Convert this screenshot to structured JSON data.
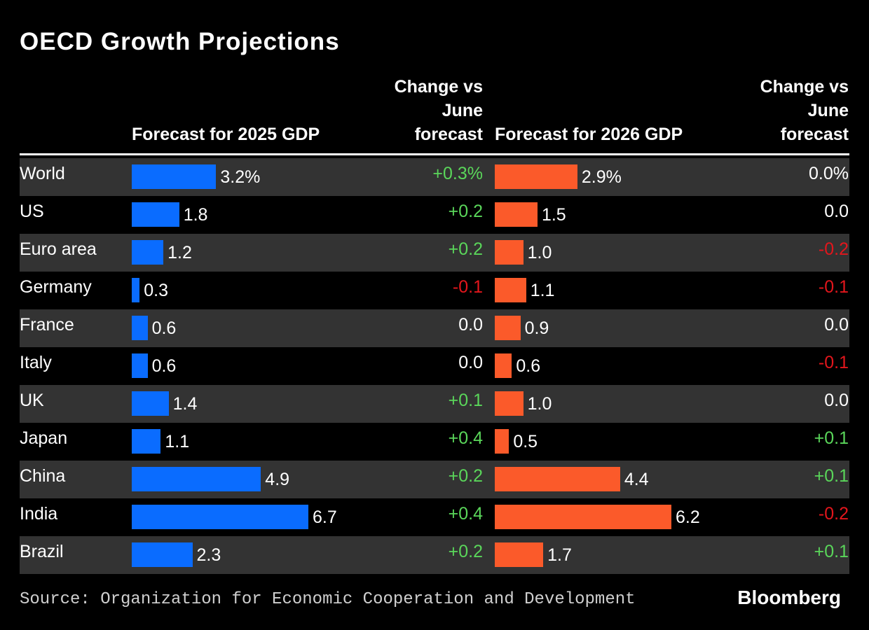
{
  "chart_data": {
    "type": "table-bar",
    "title": "OECD Growth Projections",
    "categories": [
      "World",
      "US",
      "Euro area",
      "Germany",
      "France",
      "Italy",
      "UK",
      "Japan",
      "China",
      "India",
      "Brazil"
    ],
    "series": [
      {
        "name": "Forecast for 2025 GDP",
        "color": "#0a6cff",
        "values": [
          3.2,
          1.8,
          1.2,
          0.3,
          0.6,
          0.6,
          1.4,
          1.1,
          4.9,
          6.7,
          2.3
        ],
        "value_labels": [
          "3.2%",
          "1.8",
          "1.2",
          "0.3",
          "0.6",
          "0.6",
          "1.4",
          "1.1",
          "4.9",
          "6.7",
          "2.3"
        ]
      },
      {
        "name": "Change vs June forecast",
        "values": [
          0.3,
          0.2,
          0.2,
          -0.1,
          0,
          0,
          0.1,
          0.4,
          0.2,
          0.4,
          0.2
        ],
        "value_labels": [
          "+0.3%",
          "+0.2",
          "+0.2",
          "-0.1",
          "0.0",
          "0.0",
          "+0.1",
          "+0.4",
          "+0.2",
          "+0.4",
          "+0.2"
        ]
      },
      {
        "name": "Forecast for 2026 GDP",
        "color": "#fb5a2a",
        "values": [
          2.9,
          1.5,
          1.0,
          1.1,
          0.9,
          0.6,
          1.0,
          0.5,
          4.4,
          6.2,
          1.7
        ],
        "value_labels": [
          "2.9%",
          "1.5",
          "1.0",
          "1.1",
          "0.9",
          "0.6",
          "1.0",
          "0.5",
          "4.4",
          "6.2",
          "1.7"
        ]
      },
      {
        "name": "Change vs June forecast",
        "values": [
          0,
          0,
          -0.2,
          -0.1,
          0,
          -0.1,
          0,
          0.1,
          0.1,
          -0.2,
          0.1
        ],
        "value_labels": [
          "0.0%",
          "0.0",
          "-0.2",
          "-0.1",
          "0.0",
          "-0.1",
          "0.0",
          "+0.1",
          "+0.1",
          "-0.2",
          "+0.1"
        ]
      }
    ],
    "positive_color": "#5ad65a",
    "negative_color": "#e3161c",
    "source": "Source: Organization for Economic Cooperation and Development",
    "brand": "Bloomberg"
  }
}
